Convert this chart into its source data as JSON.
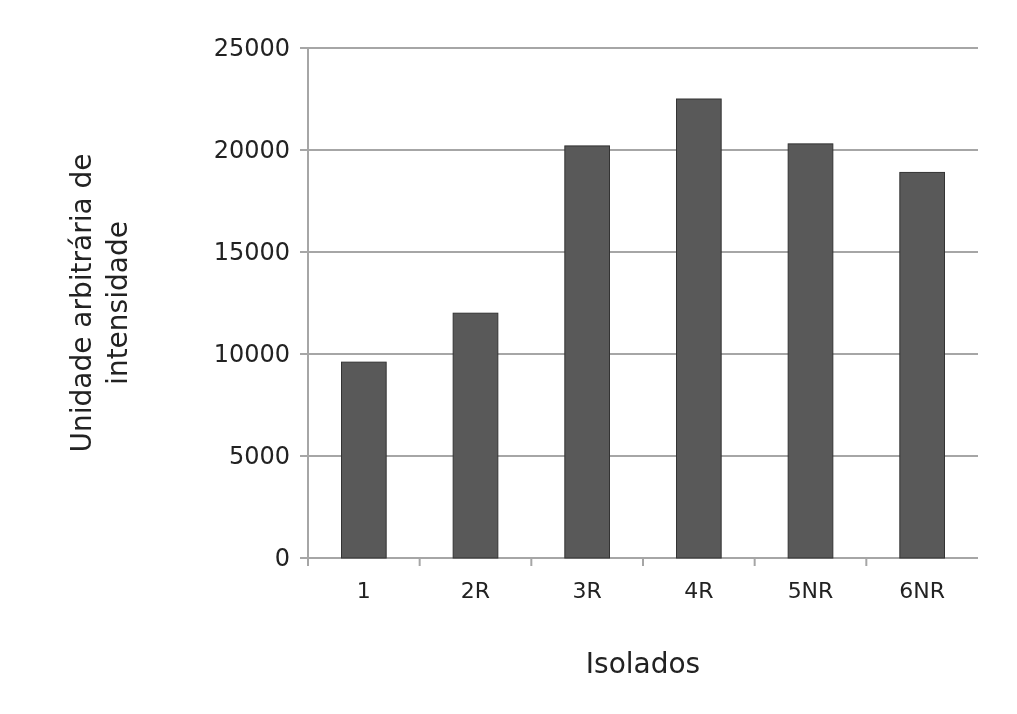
{
  "chart_data": {
    "type": "bar",
    "xlabel": "Isolados",
    "ylabel": "Unidade arbitrária de intensidade",
    "categories": [
      "1",
      "2R",
      "3R",
      "4R",
      "5NR",
      "6NR"
    ],
    "values": [
      9600,
      12000,
      20200,
      22500,
      20300,
      18900
    ],
    "color": "#595959",
    "ylim": [
      0,
      25000
    ],
    "yticks": [
      0,
      5000,
      10000,
      15000,
      20000,
      25000
    ],
    "grid": "y"
  }
}
